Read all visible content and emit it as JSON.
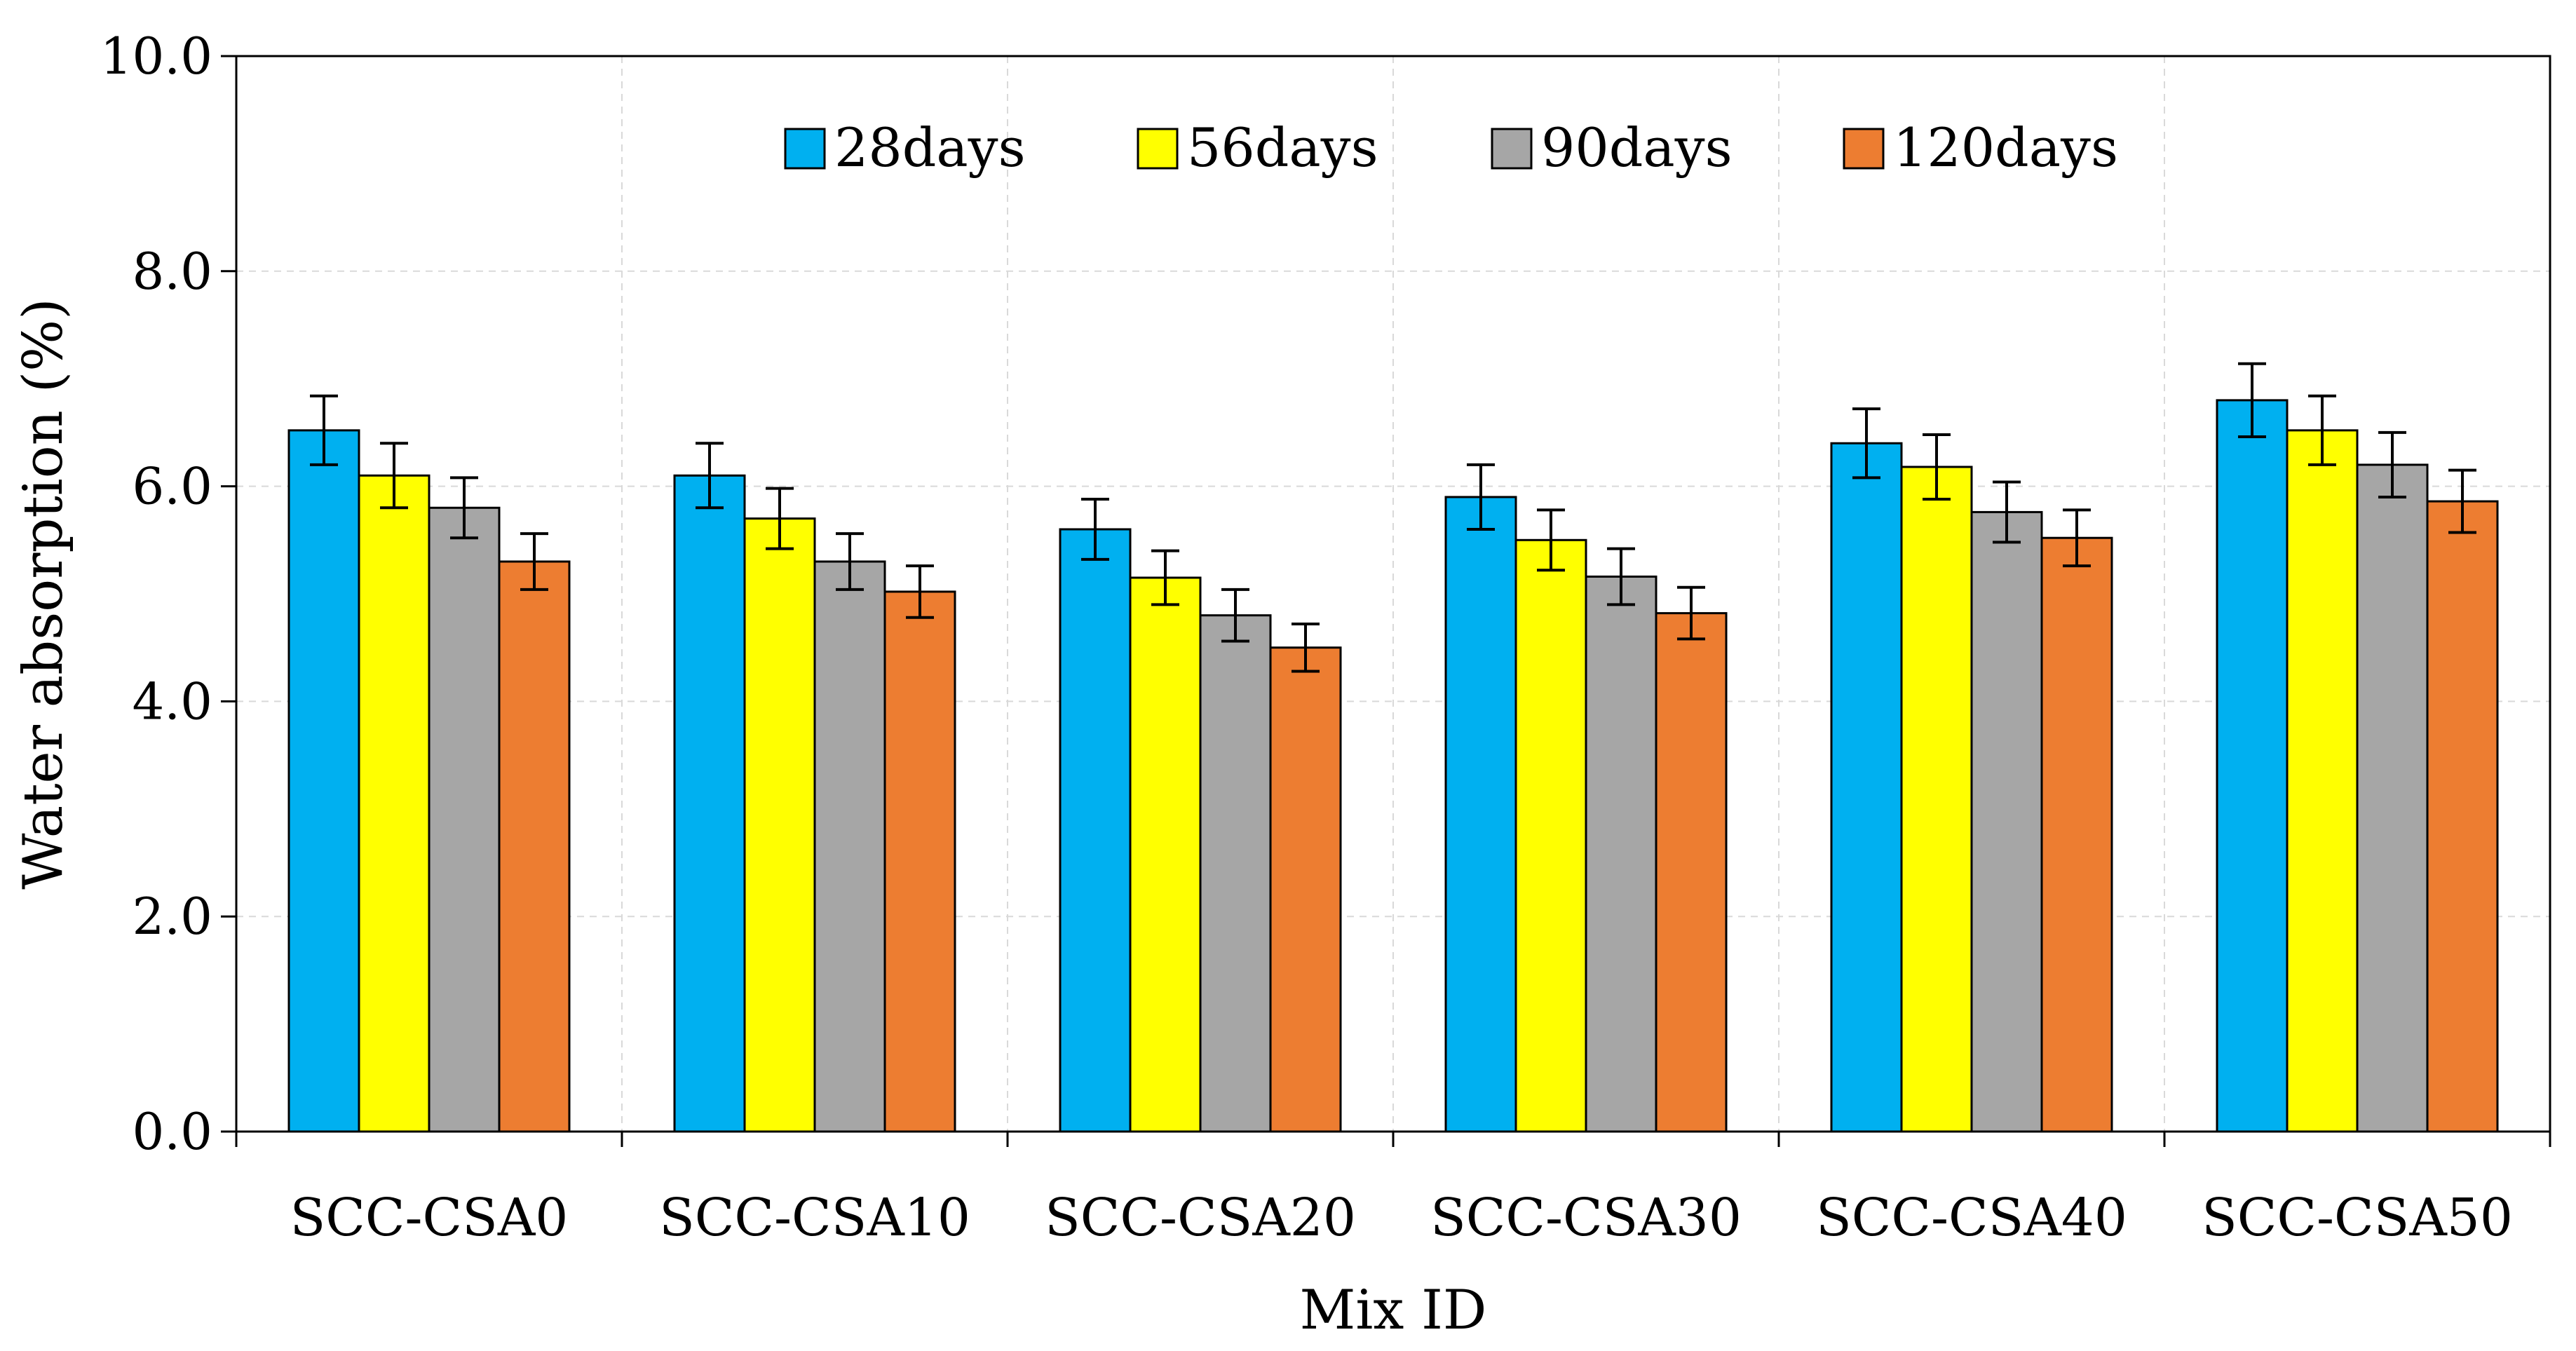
{
  "chart_data": {
    "type": "bar",
    "title": "",
    "xlabel": "Mix ID",
    "ylabel": "Water absorption (%)",
    "ylim": [
      0,
      10
    ],
    "yticks": [
      "0.0",
      "2.0",
      "4.0",
      "6.0",
      "8.0",
      "10.0"
    ],
    "grid": true,
    "legend_position": "top-center",
    "categories": [
      "SCC-CSA0",
      "SCC-CSA10",
      "SCC-CSA20",
      "SCC-CSA30",
      "SCC-CSA40",
      "SCC-CSA50"
    ],
    "series": [
      {
        "name": "28days",
        "color": "#00B0F0",
        "values": [
          6.52,
          6.1,
          5.6,
          5.9,
          6.4,
          6.8
        ],
        "errors": [
          0.32,
          0.3,
          0.28,
          0.3,
          0.32,
          0.34
        ]
      },
      {
        "name": "56days",
        "color": "#FFFF00",
        "values": [
          6.1,
          5.7,
          5.15,
          5.5,
          6.18,
          6.52
        ],
        "errors": [
          0.3,
          0.28,
          0.25,
          0.28,
          0.3,
          0.32
        ]
      },
      {
        "name": "90days",
        "color": "#A6A6A6",
        "values": [
          5.8,
          5.3,
          4.8,
          5.16,
          5.76,
          6.2
        ],
        "errors": [
          0.28,
          0.26,
          0.24,
          0.26,
          0.28,
          0.3
        ]
      },
      {
        "name": "120days",
        "color": "#ED7D31",
        "values": [
          5.3,
          5.02,
          4.5,
          4.82,
          5.52,
          5.86
        ],
        "errors": [
          0.26,
          0.24,
          0.22,
          0.24,
          0.26,
          0.29
        ]
      }
    ]
  }
}
